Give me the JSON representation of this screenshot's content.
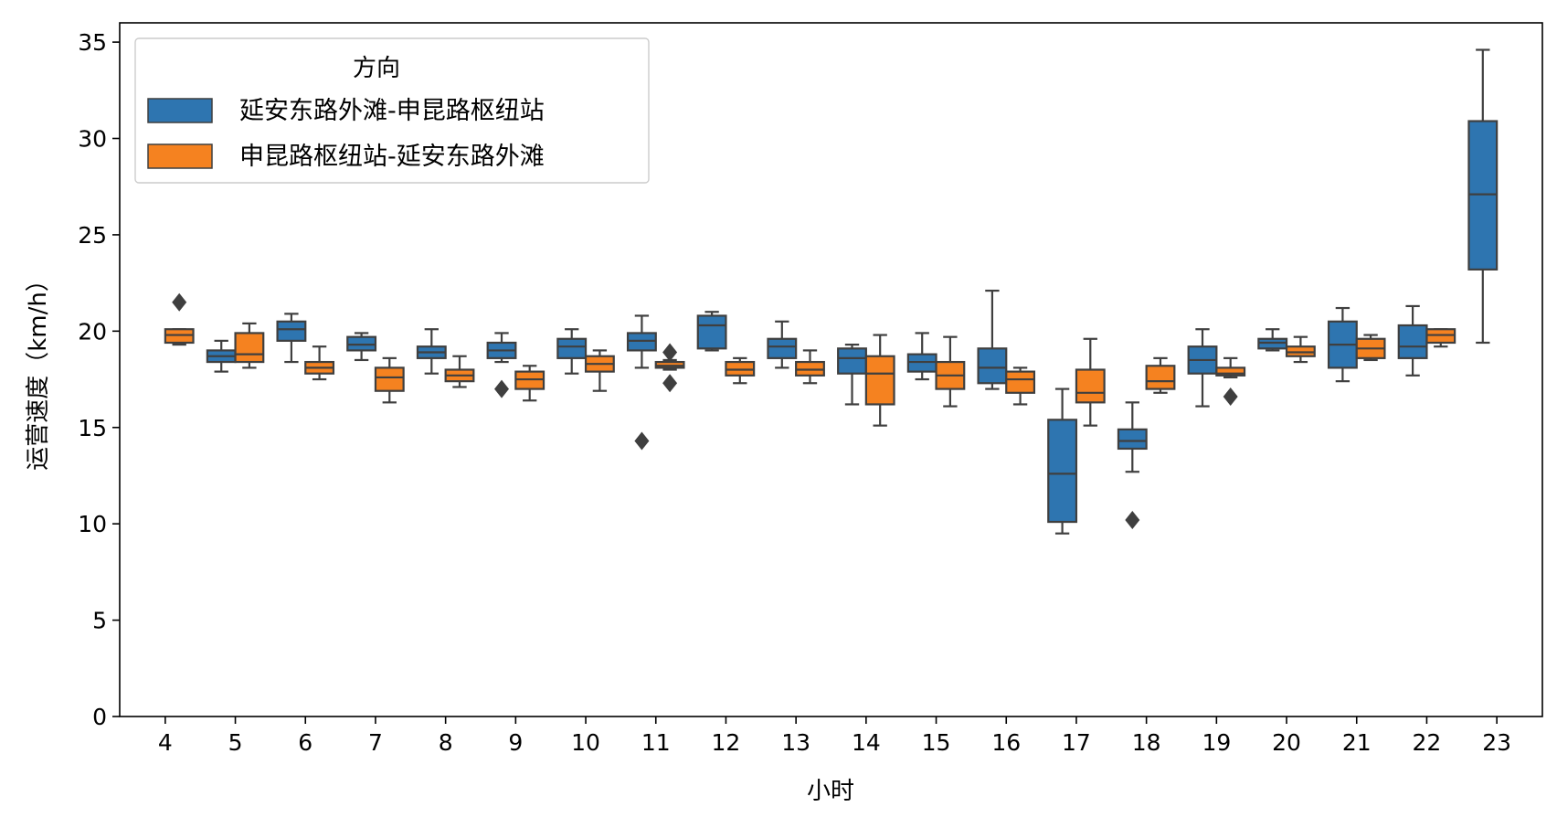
{
  "chart_data": {
    "type": "box",
    "title": "",
    "xlabel": "小时",
    "ylabel": "运营速度（km/h）",
    "ylim": [
      0,
      36
    ],
    "yticks": [
      0,
      5,
      10,
      15,
      20,
      25,
      30,
      35
    ],
    "categories": [
      "4",
      "5",
      "6",
      "7",
      "8",
      "9",
      "10",
      "11",
      "12",
      "13",
      "14",
      "15",
      "16",
      "17",
      "18",
      "19",
      "20",
      "21",
      "22",
      "23"
    ],
    "legend": {
      "title": "方向",
      "placement": "upper-left"
    },
    "series": [
      {
        "name": "延安东路外滩-申昆路枢纽站",
        "color": "#2e75b0",
        "boxes": [
          null,
          {
            "whislo": 17.9,
            "q1": 18.4,
            "med": 18.7,
            "q3": 19.0,
            "whishi": 19.5,
            "fliers": []
          },
          {
            "whislo": 18.4,
            "q1": 19.5,
            "med": 20.1,
            "q3": 20.5,
            "whishi": 20.9,
            "fliers": []
          },
          {
            "whislo": 18.5,
            "q1": 19.0,
            "med": 19.3,
            "q3": 19.7,
            "whishi": 19.9,
            "fliers": []
          },
          {
            "whislo": 17.8,
            "q1": 18.6,
            "med": 18.9,
            "q3": 19.2,
            "whishi": 20.1,
            "fliers": []
          },
          {
            "whislo": 18.4,
            "q1": 18.6,
            "med": 19.0,
            "q3": 19.4,
            "whishi": 19.9,
            "fliers": [
              17.0
            ]
          },
          {
            "whislo": 17.8,
            "q1": 18.6,
            "med": 19.2,
            "q3": 19.6,
            "whishi": 20.1,
            "fliers": []
          },
          {
            "whislo": 18.1,
            "q1": 19.0,
            "med": 19.5,
            "q3": 19.9,
            "whishi": 20.8,
            "fliers": [
              14.3
            ]
          },
          {
            "whislo": 19.0,
            "q1": 19.1,
            "med": 20.3,
            "q3": 20.8,
            "whishi": 21.0,
            "fliers": []
          },
          {
            "whislo": 18.1,
            "q1": 18.6,
            "med": 19.2,
            "q3": 19.6,
            "whishi": 20.5,
            "fliers": []
          },
          {
            "whislo": 16.2,
            "q1": 17.8,
            "med": 18.6,
            "q3": 19.1,
            "whishi": 19.3,
            "fliers": []
          },
          {
            "whislo": 17.5,
            "q1": 17.9,
            "med": 18.4,
            "q3": 18.8,
            "whishi": 19.9,
            "fliers": []
          },
          {
            "whislo": 17.0,
            "q1": 17.3,
            "med": 18.1,
            "q3": 19.1,
            "whishi": 22.1,
            "fliers": []
          },
          {
            "whislo": 9.5,
            "q1": 10.1,
            "med": 12.6,
            "q3": 15.4,
            "whishi": 17.0,
            "fliers": []
          },
          {
            "whislo": 12.7,
            "q1": 13.9,
            "med": 14.3,
            "q3": 14.9,
            "whishi": 16.3,
            "fliers": [
              10.2
            ]
          },
          {
            "whislo": 16.1,
            "q1": 17.8,
            "med": 18.5,
            "q3": 19.2,
            "whishi": 20.1,
            "fliers": []
          },
          {
            "whislo": 19.0,
            "q1": 19.1,
            "med": 19.4,
            "q3": 19.6,
            "whishi": 20.1,
            "fliers": []
          },
          {
            "whislo": 17.4,
            "q1": 18.1,
            "med": 19.3,
            "q3": 20.5,
            "whishi": 21.2,
            "fliers": []
          },
          {
            "whislo": 17.7,
            "q1": 18.6,
            "med": 19.2,
            "q3": 20.3,
            "whishi": 21.3,
            "fliers": []
          },
          {
            "whislo": 19.4,
            "q1": 23.2,
            "med": 27.1,
            "q3": 30.9,
            "whishi": 34.6,
            "fliers": []
          }
        ]
      },
      {
        "name": "申昆路枢纽站-延安东路外滩",
        "color": "#f58220",
        "boxes": [
          {
            "whislo": 19.3,
            "q1": 19.4,
            "med": 19.8,
            "q3": 20.1,
            "whishi": 20.1,
            "fliers": [
              21.5
            ]
          },
          {
            "whislo": 18.1,
            "q1": 18.4,
            "med": 18.8,
            "q3": 19.9,
            "whishi": 20.4,
            "fliers": []
          },
          {
            "whislo": 17.5,
            "q1": 17.8,
            "med": 18.1,
            "q3": 18.4,
            "whishi": 19.2,
            "fliers": []
          },
          {
            "whislo": 16.3,
            "q1": 16.9,
            "med": 17.6,
            "q3": 18.1,
            "whishi": 18.6,
            "fliers": []
          },
          {
            "whislo": 17.1,
            "q1": 17.4,
            "med": 17.7,
            "q3": 18.0,
            "whishi": 18.7,
            "fliers": []
          },
          {
            "whislo": 16.4,
            "q1": 17.0,
            "med": 17.5,
            "q3": 17.9,
            "whishi": 18.2,
            "fliers": []
          },
          {
            "whislo": 16.9,
            "q1": 17.9,
            "med": 18.3,
            "q3": 18.7,
            "whishi": 19.0,
            "fliers": []
          },
          {
            "whislo": 18.0,
            "q1": 18.1,
            "med": 18.2,
            "q3": 18.4,
            "whishi": 18.5,
            "fliers": [
              17.3,
              18.9
            ]
          },
          {
            "whislo": 17.3,
            "q1": 17.7,
            "med": 18.0,
            "q3": 18.4,
            "whishi": 18.6,
            "fliers": []
          },
          {
            "whislo": 17.3,
            "q1": 17.7,
            "med": 18.0,
            "q3": 18.4,
            "whishi": 19.0,
            "fliers": []
          },
          {
            "whislo": 15.1,
            "q1": 16.2,
            "med": 17.8,
            "q3": 18.7,
            "whishi": 19.8,
            "fliers": []
          },
          {
            "whislo": 16.1,
            "q1": 17.0,
            "med": 17.7,
            "q3": 18.4,
            "whishi": 19.7,
            "fliers": []
          },
          {
            "whislo": 16.2,
            "q1": 16.8,
            "med": 17.5,
            "q3": 17.9,
            "whishi": 18.1,
            "fliers": []
          },
          {
            "whislo": 15.1,
            "q1": 16.3,
            "med": 16.8,
            "q3": 18.0,
            "whishi": 19.6,
            "fliers": []
          },
          {
            "whislo": 16.8,
            "q1": 17.0,
            "med": 17.4,
            "q3": 18.2,
            "whishi": 18.6,
            "fliers": []
          },
          {
            "whislo": 17.6,
            "q1": 17.7,
            "med": 17.8,
            "q3": 18.1,
            "whishi": 18.6,
            "fliers": [
              16.6
            ]
          },
          {
            "whislo": 18.4,
            "q1": 18.7,
            "med": 18.9,
            "q3": 19.2,
            "whishi": 19.7,
            "fliers": []
          },
          {
            "whislo": 18.5,
            "q1": 18.6,
            "med": 19.1,
            "q3": 19.6,
            "whishi": 19.8,
            "fliers": []
          },
          {
            "whislo": 19.2,
            "q1": 19.4,
            "med": 19.8,
            "q3": 20.1,
            "whishi": 20.1,
            "fliers": []
          },
          null
        ]
      }
    ]
  }
}
